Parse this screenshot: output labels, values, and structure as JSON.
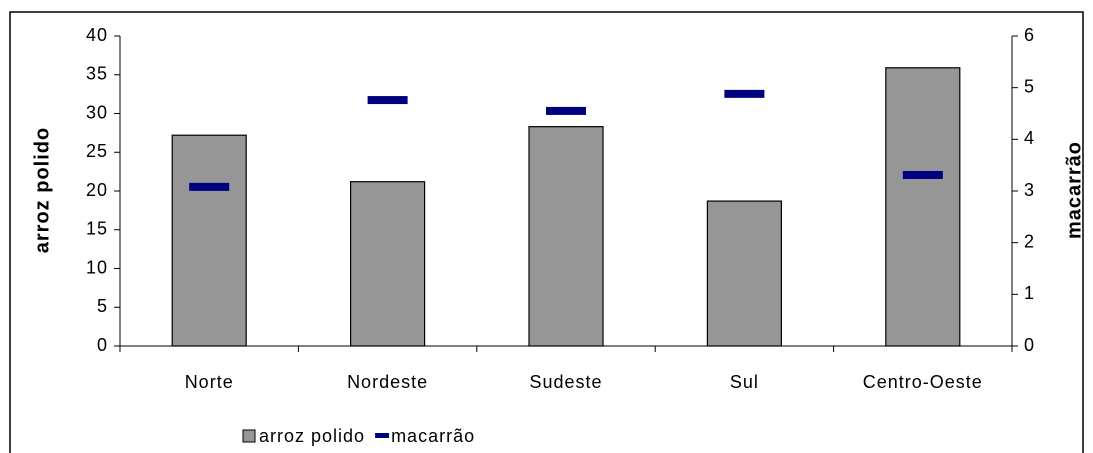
{
  "chart_data": {
    "type": "bar",
    "categories": [
      "Norte",
      "Nordeste",
      "Sudeste",
      "Sul",
      "Centro-Oeste"
    ],
    "series": [
      {
        "name": "arroz polido",
        "type": "bar",
        "color": "#969696",
        "values": [
          27.2,
          21.2,
          28.3,
          18.7,
          35.9
        ]
      },
      {
        "name": "macarrão",
        "type": "dash",
        "axis": "y2",
        "color": "#000080",
        "values": [
          3.08,
          4.76,
          4.55,
          4.88,
          3.31
        ]
      }
    ],
    "ylabel": "arroz polido",
    "y2label": "macarrão",
    "ylim": [
      0,
      40
    ],
    "yticks": [
      0,
      5,
      10,
      15,
      20,
      25,
      30,
      35,
      40
    ],
    "y2lim": [
      0,
      6
    ],
    "y2ticks": [
      0,
      1,
      2,
      3,
      4,
      5,
      6
    ],
    "grid": false,
    "legend": "bottom-left"
  }
}
